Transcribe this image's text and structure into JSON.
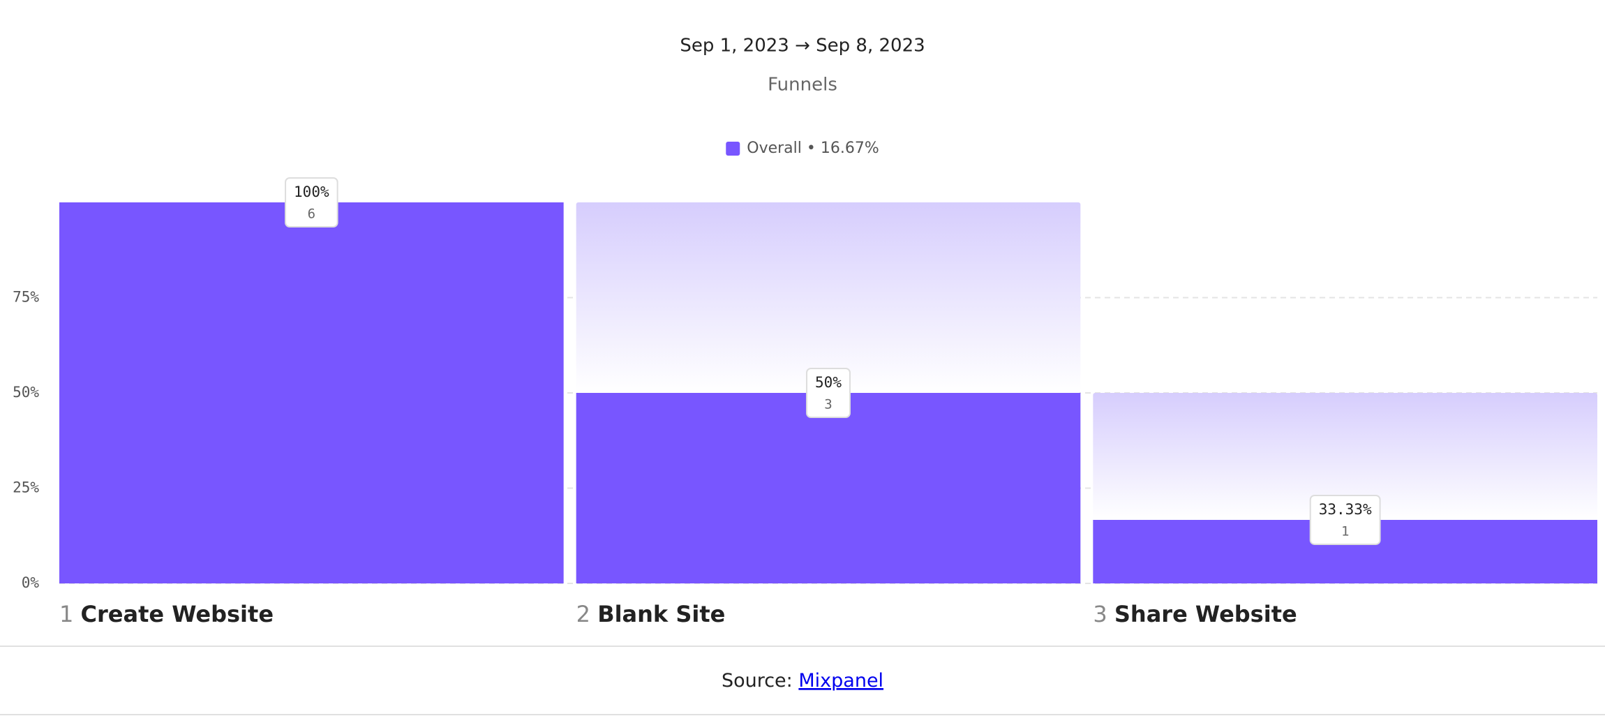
{
  "chart_data": {
    "type": "funnel",
    "date_range": "Sep 1, 2023 → Sep 8, 2023",
    "title": "Funnels",
    "overall_rate": {
      "value": 16.67,
      "label": "• 16.67%"
    },
    "step_numbers": [
      "1",
      "2",
      "3"
    ],
    "categories": [
      "Create Website",
      "Blank Site",
      "Share Website"
    ],
    "series": [
      {
        "name": "Overall",
        "color": "#7856ff",
        "values": [
          100,
          50,
          16.67
        ]
      }
    ],
    "step_conversion": {
      "values": [
        100,
        50,
        33.33
      ],
      "value_labels": [
        "100%",
        "50%",
        "33.33%"
      ]
    },
    "counts": [
      6,
      3,
      1
    ],
    "ylim": [
      0,
      100
    ],
    "yticks": [
      {
        "value": 0,
        "label": "0%"
      },
      {
        "value": 25,
        "label": "25%"
      },
      {
        "value": 50,
        "label": "50%"
      },
      {
        "value": 75,
        "label": "75%"
      }
    ],
    "grid": true
  },
  "footer": {
    "source_label": "Source:",
    "source_link": "Mixpanel"
  }
}
